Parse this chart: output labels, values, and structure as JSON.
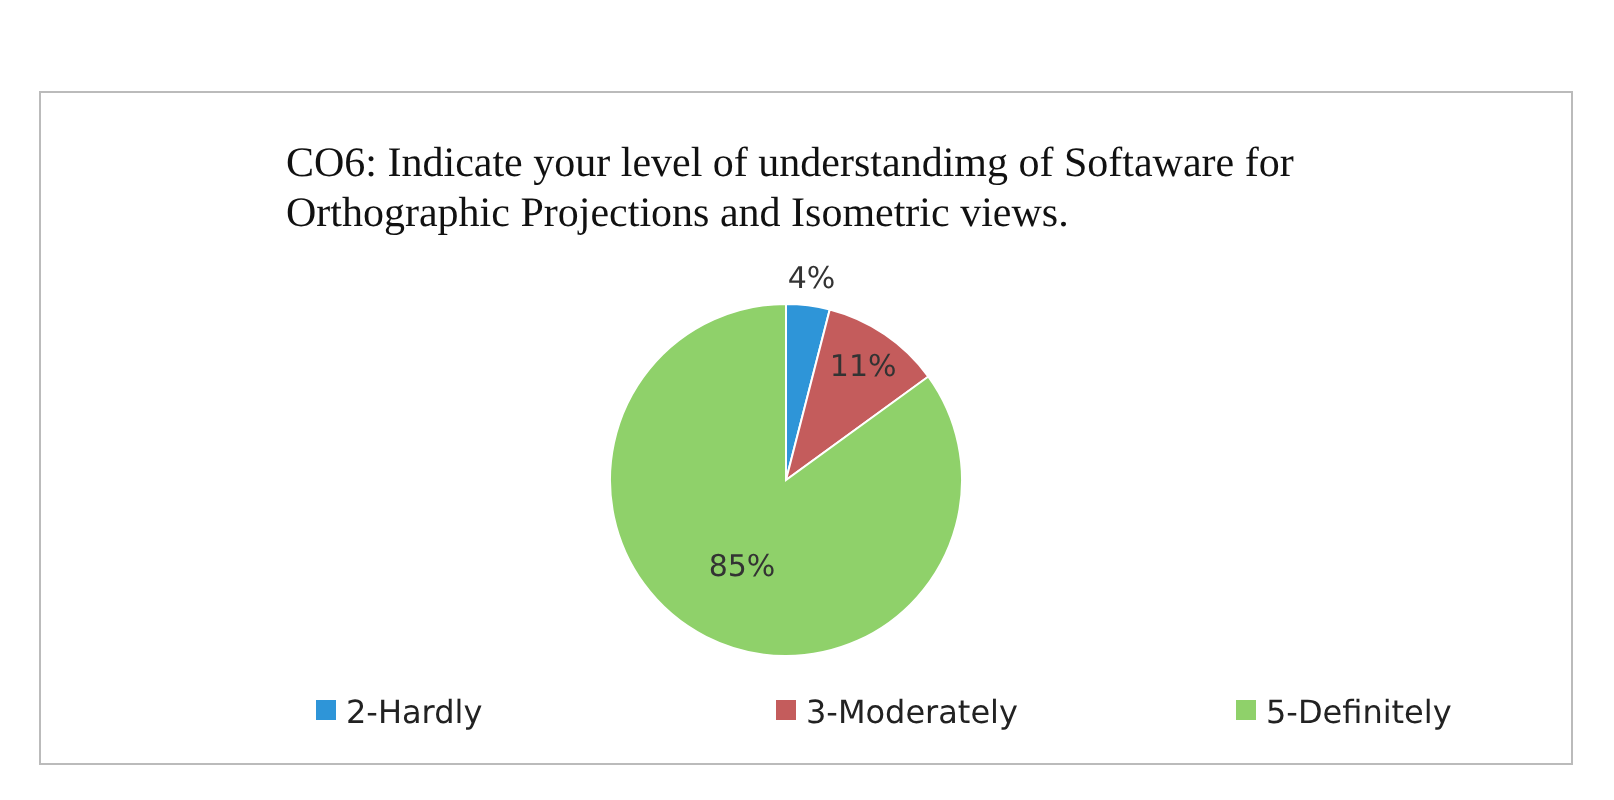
{
  "chart_data": {
    "type": "pie",
    "title": "CO6: Indicate your level of understandimg of Softaware for Orthographic Projections and Isometric views.",
    "categories": [
      "2-Hardly",
      "3-Moderately",
      "5-Definitely"
    ],
    "values": [
      4,
      11,
      85
    ],
    "colors": [
      "#2e95d8",
      "#c45c5c",
      "#8fd16a"
    ],
    "value_labels": [
      "4%",
      "11%",
      "85%"
    ],
    "legend": "bottom"
  }
}
